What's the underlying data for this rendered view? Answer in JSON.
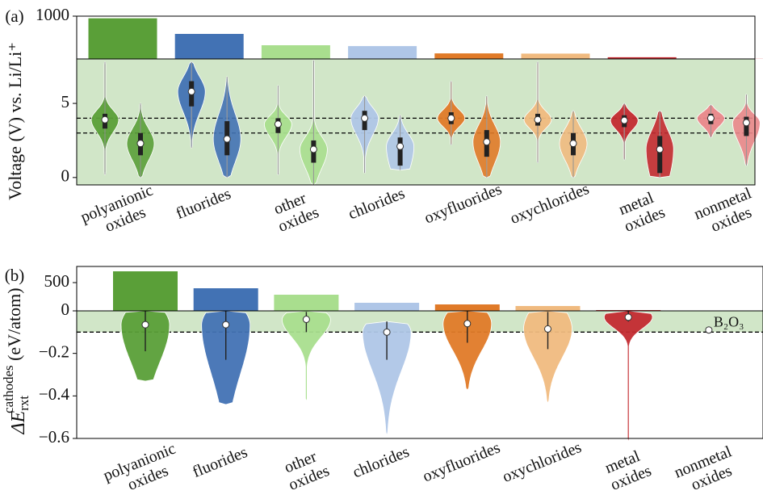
{
  "chart_data": [
    {
      "type": "violin",
      "panel_label": "(a)",
      "ylabel": "Voltage (V) vs. Li/Li⁺",
      "categories": [
        "polyanionic oxides",
        "fluorides",
        "other oxides",
        "chlorides",
        "oxyfluorides",
        "oxychlorides",
        "metal oxides",
        "nonmetal oxides"
      ],
      "colors": [
        "#5a9f38",
        "#4272b4",
        "#a9de8e",
        "#afc6e7",
        "#e07a28",
        "#f0ba7f",
        "#c32a30",
        "#ea878b"
      ],
      "counts": [
        950,
        585,
        320,
        300,
        130,
        125,
        40,
        5
      ],
      "count_ylim": [
        0,
        1000
      ],
      "count_yticks": [
        1000
      ],
      "ylim": [
        -0.5,
        8.0
      ],
      "yticks": [
        0,
        5
      ],
      "hlines": [
        3.0,
        4.0
      ],
      "shade": [
        -0.5,
        8.0
      ],
      "shade_color": "#d1e6c8",
      "series": [
        {
          "values": [
            {
              "min": 0.2,
              "max": 7.8,
              "q1": 3.3,
              "median": 3.9,
              "q3": 4.3
            },
            {
              "min": 2.0,
              "max": 7.8,
              "q1": 4.8,
              "median": 5.8,
              "q3": 6.5
            },
            {
              "min": 0.2,
              "max": 6.2,
              "q1": 3.0,
              "median": 3.6,
              "q3": 4.0
            },
            {
              "min": 0.3,
              "max": 5.5,
              "q1": 3.2,
              "median": 4.0,
              "q3": 4.5
            },
            {
              "min": 2.2,
              "max": 6.5,
              "q1": 3.6,
              "median": 4.0,
              "q3": 4.4
            },
            {
              "min": 1.0,
              "max": 7.8,
              "q1": 3.5,
              "median": 3.9,
              "q3": 4.3
            },
            {
              "min": 1.2,
              "max": 5.0,
              "q1": 3.4,
              "median": 3.85,
              "q3": 4.2
            },
            {
              "min": 2.7,
              "max": 4.9,
              "q1": 3.6,
              "median": 4.0,
              "q3": 4.3
            }
          ]
        },
        {
          "values": [
            {
              "min": 0.0,
              "max": 5.0,
              "q1": 1.5,
              "median": 2.3,
              "q3": 3.0
            },
            {
              "min": 0.0,
              "max": 6.8,
              "q1": 1.5,
              "median": 2.6,
              "q3": 3.8
            },
            {
              "min": -0.5,
              "max": 7.9,
              "q1": 1.0,
              "median": 1.9,
              "q3": 2.5
            },
            {
              "min": 0.5,
              "max": 4.2,
              "q1": 0.8,
              "median": 2.1,
              "q3": 2.7
            },
            {
              "min": 0.0,
              "max": 5.5,
              "q1": 1.4,
              "median": 2.4,
              "q3": 3.2
            },
            {
              "min": 0.0,
              "max": 4.5,
              "q1": 1.5,
              "median": 2.3,
              "q3": 3.0
            },
            {
              "min": 0.0,
              "max": 4.5,
              "q1": 0.3,
              "median": 1.9,
              "q3": 2.8
            },
            {
              "min": 0.8,
              "max": 5.6,
              "q1": 2.8,
              "median": 3.7,
              "q3": 4.1
            }
          ]
        }
      ]
    },
    {
      "type": "violin-energy",
      "panel_label": "(b)",
      "ylabel": {
        "symbol": "ΔE",
        "sub": "rxt",
        "sup": "cathodes",
        "unit": "(eV/atom)"
      },
      "categories": [
        "polyanionic oxides",
        "fluorides",
        "other oxides",
        "chlorides",
        "oxyfluorides",
        "oxychlorides",
        "metal oxides",
        "nonmetal oxides"
      ],
      "colors": [
        "#5a9f38",
        "#4272b4",
        "#a9de8e",
        "#afc6e7",
        "#e07a28",
        "#f0ba7f",
        "#c32a30",
        "#ea878b"
      ],
      "counts": [
        700,
        400,
        286,
        143,
        114,
        86,
        14,
        1
      ],
      "count_ylim": [
        0,
        786
      ],
      "count_yticks": [
        500
      ],
      "ylim": [
        -0.6,
        0
      ],
      "yticks": [
        {
          "value": -0.6,
          "label": "−0.6"
        },
        {
          "value": -0.4,
          "label": "−0.4"
        },
        {
          "value": -0.2,
          "label": "−0.2"
        },
        0
      ],
      "hlines": [
        -0.1
      ],
      "shade": [
        -0.1,
        0
      ],
      "shade_color": "#d1e6c8",
      "series": [
        {
          "values": [
            {
              "min": -0.33,
              "max": 0,
              "whisker_low": -0.19,
              "median": -0.065,
              "whisker_high": 0
            },
            {
              "min": -0.44,
              "max": 0,
              "whisker_low": -0.23,
              "median": -0.065,
              "whisker_high": 0
            },
            {
              "min": -0.42,
              "max": 0,
              "whisker_low": -0.1,
              "median": -0.04,
              "whisker_high": -0.005
            },
            {
              "min": -0.58,
              "max": -0.05,
              "whisker_low": -0.23,
              "median": -0.1,
              "whisker_high": -0.05
            },
            {
              "min": -0.37,
              "max": 0,
              "whisker_low": -0.15,
              "median": -0.06,
              "whisker_high": 0
            },
            {
              "min": -0.43,
              "max": 0,
              "whisker_low": -0.18,
              "median": -0.085,
              "whisker_high": -0.005
            },
            {
              "min": -0.61,
              "max": 0,
              "whisker_low": -0.05,
              "median": -0.03,
              "whisker_high": 0
            },
            null
          ]
        }
      ],
      "annotation": {
        "text": "B₂O₃",
        "value": -0.09
      }
    }
  ]
}
